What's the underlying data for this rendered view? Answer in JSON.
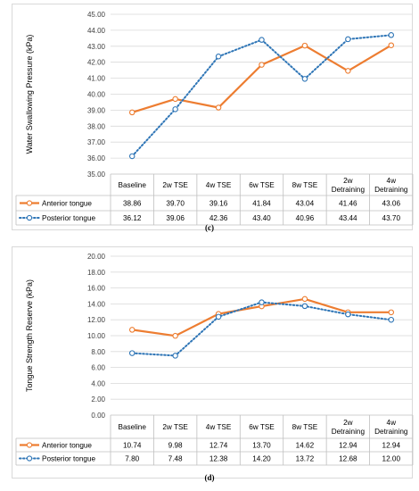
{
  "colors": {
    "anterior": "#ed7d31",
    "posterior": "#2e75b6",
    "grid": "#d9d9d9",
    "axis": "#bfbfbf"
  },
  "categories": [
    "Baseline",
    "2w TSE",
    "4w TSE",
    "6w TSE",
    "8w TSE",
    "2w Detraining",
    "4w Detraining"
  ],
  "category_lines": [
    [
      "Baseline"
    ],
    [
      "2w TSE"
    ],
    [
      "4w TSE"
    ],
    [
      "6w TSE"
    ],
    [
      "8w TSE"
    ],
    [
      "2w",
      "Detraining"
    ],
    [
      "4w",
      "Detraining"
    ]
  ],
  "chart_data": [
    {
      "type": "line",
      "caption": "(c)",
      "ylabel": "Water Swallowing Pressure (kPa)",
      "ylim": [
        35,
        45
      ],
      "yticks": [
        "35.00",
        "36.00",
        "37.00",
        "38.00",
        "39.00",
        "40.00",
        "41.00",
        "42.00",
        "43.00",
        "44.00",
        "45.00"
      ],
      "grid": true,
      "legend": "data-table",
      "categories": [
        "Baseline",
        "2w TSE",
        "4w TSE",
        "6w TSE",
        "8w TSE",
        "2w Detraining",
        "4w Detraining"
      ],
      "series": [
        {
          "name": "Anterior tongue",
          "values": [
            38.86,
            39.7,
            39.16,
            41.84,
            43.04,
            41.46,
            43.06
          ],
          "labels": [
            "38.86",
            "39.70",
            "39.16",
            "41.84",
            "43.04",
            "41.46",
            "43.06"
          ]
        },
        {
          "name": "Posterior tongue",
          "values": [
            36.12,
            39.06,
            42.36,
            43.4,
            40.96,
            43.44,
            43.7
          ],
          "labels": [
            "36.12",
            "39.06",
            "42.36",
            "43.40",
            "40.96",
            "43.44",
            "43.70"
          ]
        }
      ]
    },
    {
      "type": "line",
      "caption": "(d)",
      "ylabel": "Tongue Strength Reserve (kPa)",
      "ylim": [
        0,
        20
      ],
      "yticks": [
        "0.00",
        "2.00",
        "4.00",
        "6.00",
        "8.00",
        "10.00",
        "12.00",
        "14.00",
        "16.00",
        "18.00",
        "20.00"
      ],
      "grid": true,
      "legend": "data-table",
      "categories": [
        "Baseline",
        "2w TSE",
        "4w TSE",
        "6w TSE",
        "8w TSE",
        "2w Detraining",
        "4w Detraining"
      ],
      "series": [
        {
          "name": "Anterior tongue",
          "values": [
            10.74,
            9.98,
            12.74,
            13.7,
            14.62,
            12.94,
            12.94
          ],
          "labels": [
            "10.74",
            "9.98",
            "12.74",
            "13.70",
            "14.62",
            "12.94",
            "12.94"
          ]
        },
        {
          "name": "Posterior tongue",
          "values": [
            7.8,
            7.48,
            12.38,
            14.2,
            13.72,
            12.68,
            12.0
          ],
          "labels": [
            "7.80",
            "7.48",
            "12.38",
            "14.20",
            "13.72",
            "12.68",
            "12.00"
          ]
        }
      ]
    }
  ]
}
